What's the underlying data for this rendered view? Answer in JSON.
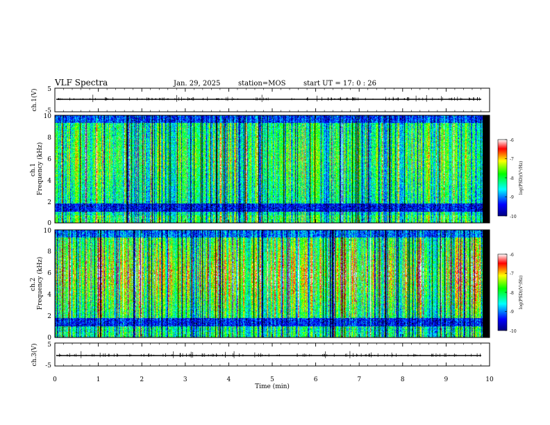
{
  "header": {
    "title": "VLF Spectra",
    "date": "Jan. 29, 2025",
    "station": "station=MOS",
    "start": "start  UT =   17: 0  : 26"
  },
  "chart_data": [
    {
      "panel": "ch1-waveform",
      "type": "line",
      "ylabel": "ch.1(V)",
      "ylim": [
        -5,
        5
      ],
      "y_ticks": [
        "5",
        "-5"
      ],
      "xlim": [
        0,
        10
      ],
      "baseline": 0
    },
    {
      "panel": "ch1-spectrogram",
      "type": "heatmap",
      "ylabel": "ch.1\nFrequency (kHz)",
      "ylim": [
        0,
        10
      ],
      "y_ticks": [
        "0",
        "2",
        "4",
        "6",
        "8",
        "10"
      ],
      "xlim": [
        0,
        10
      ],
      "colorbar": {
        "label": "log(PSD)(V²/Hz)",
        "ticks": [
          "-6",
          "-7",
          "-8",
          "-9",
          "-10"
        ],
        "range": [
          -10,
          -6
        ]
      }
    },
    {
      "panel": "ch2-spectrogram",
      "type": "heatmap",
      "ylabel": "ch.2\nFrequency (kHz)",
      "ylim": [
        0,
        10
      ],
      "y_ticks": [
        "0",
        "2",
        "4",
        "6",
        "8",
        "10"
      ],
      "xlim": [
        0,
        10
      ],
      "colorbar": {
        "label": "log(PSD)(V²/Hz)",
        "ticks": [
          "-6",
          "-7",
          "-8",
          "-9",
          "-10"
        ],
        "range": [
          -10,
          -6
        ]
      }
    },
    {
      "panel": "ch3-waveform",
      "type": "line",
      "ylabel": "ch.3(V)",
      "ylim": [
        -5,
        5
      ],
      "y_ticks": [
        "5",
        "-5"
      ],
      "xlim": [
        0,
        10
      ],
      "baseline": 0
    }
  ],
  "x_axis": {
    "label": "Time  (min)",
    "ticks": [
      "0",
      "1",
      "2",
      "3",
      "4",
      "5",
      "6",
      "7",
      "8",
      "9",
      "10"
    ]
  },
  "colors": {
    "colormap": [
      "#000080",
      "#0000ff",
      "#00ffff",
      "#00ff00",
      "#ffff00",
      "#ff0000",
      "#ffffff"
    ],
    "trace": "#000000"
  }
}
